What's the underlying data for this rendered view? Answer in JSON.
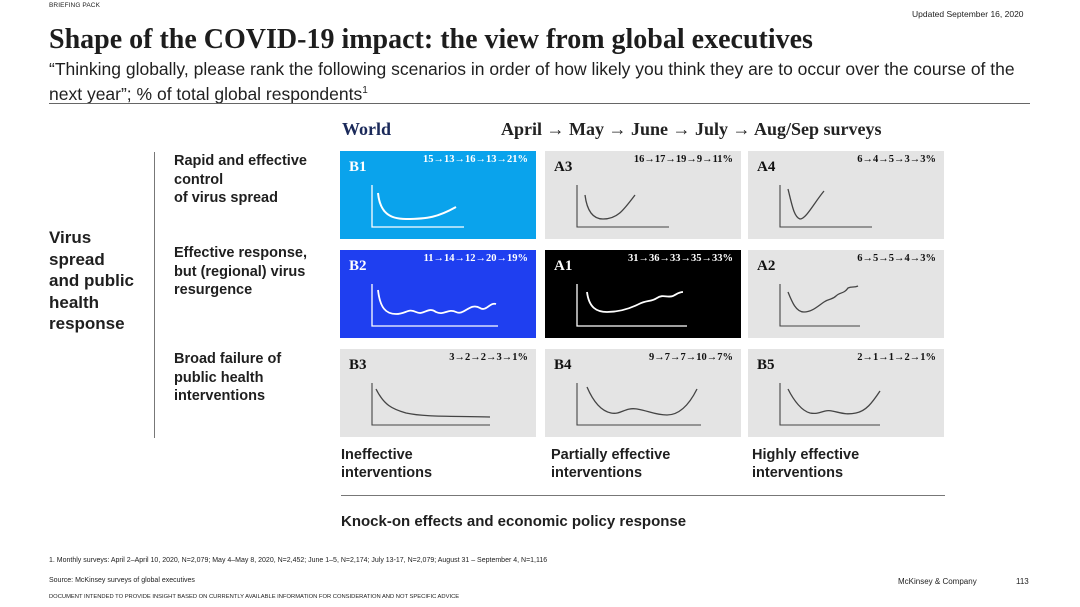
{
  "header": {
    "tag": "BRIEFING PACK",
    "updated": "Updated September 16, 2020",
    "title": "Shape of the COVID-19 impact: the view from global executives",
    "subtitle": "“Thinking globally, please rank the following scenarios in order of how likely you think they are to occur over the course of the next year”; % of total global respondents",
    "subtitle_footnote": "1"
  },
  "columns": {
    "world": "World",
    "months": "April → May  → June → July → Aug/Sep surveys"
  },
  "left_label": [
    "Virus",
    "spread",
    "and public",
    "health",
    "response"
  ],
  "rows": [
    {
      "label": [
        "Rapid and effective",
        "control",
        "of virus spread"
      ]
    },
    {
      "label": [
        "Effective response,",
        "but (regional) virus",
        "resurgence"
      ]
    },
    {
      "label": [
        "Broad failure of",
        "public health",
        "interventions"
      ]
    }
  ],
  "cells": [
    {
      "code": "B1",
      "seq": "15→13→16→13→21%"
    },
    {
      "code": "A3",
      "seq": "16→17→19→9→11%"
    },
    {
      "code": "A4",
      "seq": "6→4→5→3→3%"
    },
    {
      "code": "B2",
      "seq": "11→14→12→20→19%"
    },
    {
      "code": "A1",
      "seq": "31→36→33→35→33%"
    },
    {
      "code": "A2",
      "seq": "6→5→5→4→3%"
    },
    {
      "code": "B3",
      "seq": "3→2→2→3→1%"
    },
    {
      "code": "B4",
      "seq": "9→7→7→10→7%"
    },
    {
      "code": "B5",
      "seq": "2→1→1→2→1%"
    }
  ],
  "column_labels": [
    [
      "Ineffective",
      "interventions"
    ],
    [
      "Partially effective",
      "interventions"
    ],
    [
      "Highly effective",
      "interventions"
    ]
  ],
  "bottom_axis": "Knock-on effects and economic policy response",
  "footnote": "1.   Monthly surveys: April 2–April 10, 2020, N=2,079; May 4–May 8, 2020, N=2,452; June 1–5, N=2,174; July 13-17, N=2,079; August 31 – September 4, N=1,116",
  "source": "Source: McKinsey surveys of global executives",
  "brand": "McKinsey & Company",
  "page": "113",
  "disclaimer": "DOCUMENT INTENDED TO PROVIDE INSIGHT BASED ON CURRENTLY AVAILABLE INFORMATION FOR CONSIDERATION AND NOT SPECIFIC ADVICE",
  "colors": {
    "b1_bg": "#0aa3ec",
    "b2_bg": "#1f3ff0",
    "a1_bg": "#000000",
    "grey_bg": "#e4e4e4",
    "dark_text": "#1b2a5a"
  }
}
